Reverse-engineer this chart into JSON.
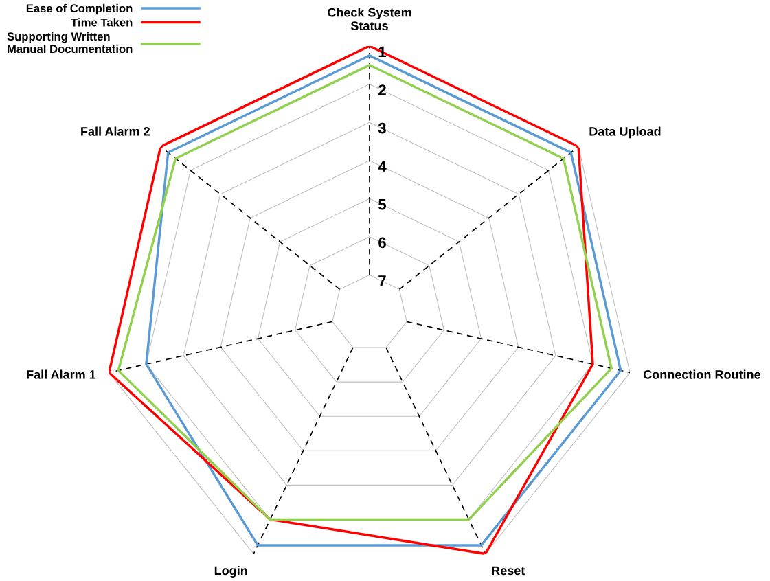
{
  "chart_data": {
    "type": "radar",
    "categories": [
      "Check System\nStatus",
      "Data Upload",
      "Connection Routine",
      "Reset",
      "Login",
      "Fall Alarm 1",
      "Fall Alarm 2"
    ],
    "series": [
      {
        "name": "Ease of Completion",
        "color": "#5b9bd5",
        "values": [
          1.25,
          1.25,
          1.25,
          1.25,
          1.25,
          2,
          1.25
        ]
      },
      {
        "name": "Time Taken",
        "color": "#ff0000",
        "values": [
          1,
          1,
          2,
          1,
          2,
          1,
          1
        ]
      },
      {
        "name": "Supporting Written\nManual Documentation",
        "color": "#92d050",
        "values": [
          1.5,
          1.5,
          1.5,
          2,
          2,
          1.25,
          1.5
        ]
      }
    ],
    "ylim": [
      8,
      1
    ],
    "yticks": [
      1,
      2,
      3,
      4,
      5,
      6,
      7
    ],
    "grid": true,
    "legend": "top left",
    "line_style": "solid",
    "marker": "none"
  }
}
